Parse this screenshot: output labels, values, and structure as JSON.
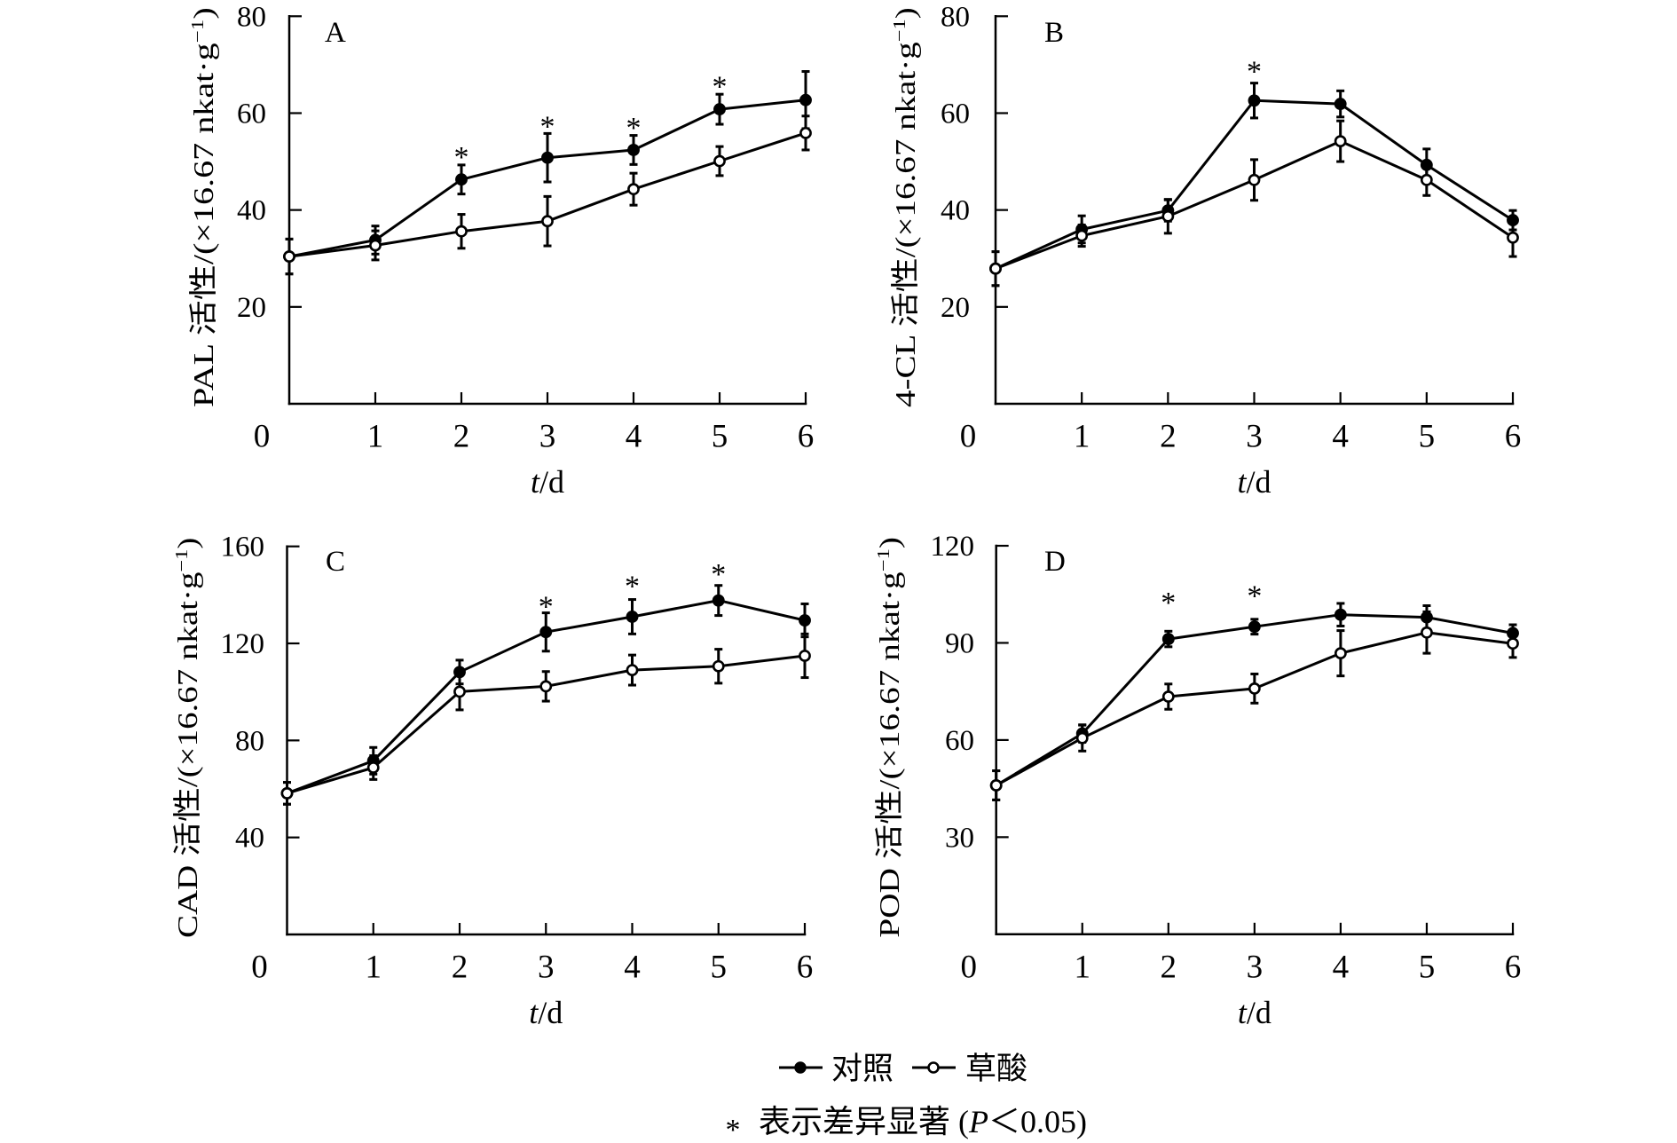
{
  "figure": {
    "background": "#ffffff",
    "ink": "#000000"
  },
  "chart_data": [
    {
      "panel": "A",
      "type": "line",
      "ylabel": {
        "main": "PAL 活性/(×16.67 nkat·g",
        "sup": "−1",
        "end": ")"
      },
      "xlabel": {
        "italic": "t",
        "rest": "/d"
      },
      "x": [
        0,
        1,
        2,
        3,
        4,
        5,
        6
      ],
      "x_ticks": [
        "0",
        "1",
        "2",
        "3",
        "4",
        "5",
        "6"
      ],
      "ylim": [
        0,
        80
      ],
      "y_ticks": [
        20,
        40,
        60,
        80
      ],
      "grid": false,
      "series": [
        {
          "name": "对照",
          "marker": "filled-circle",
          "values": [
            30.4,
            33.8,
            46.3,
            50.8,
            52.4,
            60.8,
            62.7
          ],
          "errors": [
            3.6,
            2.9,
            3.0,
            5.0,
            3.0,
            3.1,
            5.9
          ]
        },
        {
          "name": "草酸",
          "marker": "open-circle",
          "values": [
            30.4,
            32.7,
            35.6,
            37.7,
            44.3,
            50.1,
            55.9
          ],
          "errors": [
            3.6,
            3.0,
            3.5,
            5.1,
            3.3,
            3.0,
            3.5
          ]
        }
      ],
      "annotations": [
        {
          "x": 2,
          "y": 51.9,
          "text": "*"
        },
        {
          "x": 3,
          "y": 58.3,
          "text": "*"
        },
        {
          "x": 4,
          "y": 58.0,
          "text": "*"
        },
        {
          "x": 5,
          "y": 66.5,
          "text": "*"
        }
      ]
    },
    {
      "panel": "B",
      "type": "line",
      "ylabel": {
        "main": "4-CL 活性/(×16.67 nkat·g",
        "sup": "−1",
        "end": ")"
      },
      "xlabel": {
        "italic": "t",
        "rest": "/d"
      },
      "x": [
        0,
        1,
        2,
        3,
        4,
        5,
        6
      ],
      "x_ticks": [
        "0",
        "1",
        "2",
        "3",
        "4",
        "5",
        "6"
      ],
      "ylim": [
        0,
        80
      ],
      "y_ticks": [
        20,
        40,
        60,
        80
      ],
      "grid": false,
      "series": [
        {
          "name": "对照",
          "marker": "filled-circle",
          "values": [
            27.9,
            36.0,
            39.9,
            62.6,
            61.9,
            49.3,
            37.9
          ],
          "errors": [
            3.5,
            2.8,
            2.2,
            3.6,
            2.7,
            3.3,
            2.0
          ]
        },
        {
          "name": "草酸",
          "marker": "open-circle",
          "values": [
            27.9,
            34.7,
            38.7,
            46.2,
            54.2,
            46.2,
            34.3
          ],
          "errors": [
            3.5,
            2.2,
            3.5,
            4.2,
            4.2,
            3.2,
            3.9
          ]
        }
      ],
      "annotations": [
        {
          "x": 3,
          "y": 69.6,
          "text": "*"
        }
      ]
    },
    {
      "panel": "C",
      "type": "line",
      "ylabel": {
        "main": "CAD 活性/(×16.67 nkat·g",
        "sup": "−1",
        "end": ")"
      },
      "xlabel": {
        "italic": "t",
        "rest": "/d"
      },
      "x": [
        0,
        1,
        2,
        3,
        4,
        5,
        6
      ],
      "x_ticks": [
        "0",
        "1",
        "2",
        "3",
        "4",
        "5",
        "6"
      ],
      "ylim": [
        0,
        160
      ],
      "y_ticks": [
        40,
        80,
        120,
        160
      ],
      "grid": false,
      "series": [
        {
          "name": "对照",
          "marker": "filled-circle",
          "values": [
            58.2,
            71.6,
            108.2,
            124.7,
            131.0,
            137.7,
            129.5
          ],
          "errors": [
            4.5,
            5.5,
            4.9,
            7.9,
            7.1,
            6.2,
            6.8
          ]
        },
        {
          "name": "草酸",
          "marker": "open-circle",
          "values": [
            58.2,
            68.8,
            100.1,
            102.3,
            109.0,
            110.6,
            114.9
          ],
          "errors": [
            4.5,
            4.9,
            7.5,
            6.1,
            6.2,
            7.0,
            9.0
          ]
        }
      ],
      "annotations": [
        {
          "x": 3,
          "y": 137.2,
          "text": "*"
        },
        {
          "x": 4,
          "y": 145.6,
          "text": "*"
        },
        {
          "x": 5,
          "y": 150.5,
          "text": "*"
        }
      ]
    },
    {
      "panel": "D",
      "type": "line",
      "ylabel": {
        "main": "POD 活性/(×16.67 nkat·g",
        "sup": "−1",
        "end": ")"
      },
      "xlabel": {
        "italic": "t",
        "rest": "/d"
      },
      "x": [
        0,
        1,
        2,
        3,
        4,
        5,
        6
      ],
      "x_ticks": [
        "0",
        "1",
        "2",
        "3",
        "4",
        "5",
        "6"
      ],
      "ylim": [
        0,
        120
      ],
      "y_ticks": [
        30,
        60,
        90,
        120
      ],
      "grid": false,
      "series": [
        {
          "name": "对照",
          "marker": "filled-circle",
          "values": [
            46.0,
            62.0,
            91.2,
            95.0,
            98.7,
            97.9,
            93.0
          ],
          "errors": [
            4.5,
            2.7,
            2.4,
            2.3,
            3.5,
            3.6,
            2.6
          ]
        },
        {
          "name": "草酸",
          "marker": "open-circle",
          "values": [
            46.0,
            60.6,
            73.4,
            75.9,
            86.8,
            93.2,
            89.8
          ],
          "errors": [
            4.5,
            4.0,
            3.9,
            4.5,
            7.0,
            6.4,
            4.3
          ]
        }
      ],
      "annotations": [
        {
          "x": 2,
          "y": 104.0,
          "text": "*"
        },
        {
          "x": 3,
          "y": 106.0,
          "text": "*"
        }
      ]
    }
  ],
  "legend": {
    "position": "bottom-center",
    "items": [
      {
        "label": "对照",
        "marker": "filled-circle"
      },
      {
        "label": "草酸",
        "marker": "open-circle"
      }
    ]
  },
  "footnote": {
    "symbol": "*",
    "text": "表示差异显著 (",
    "italic": "P",
    "rest": "＜0.05)"
  }
}
